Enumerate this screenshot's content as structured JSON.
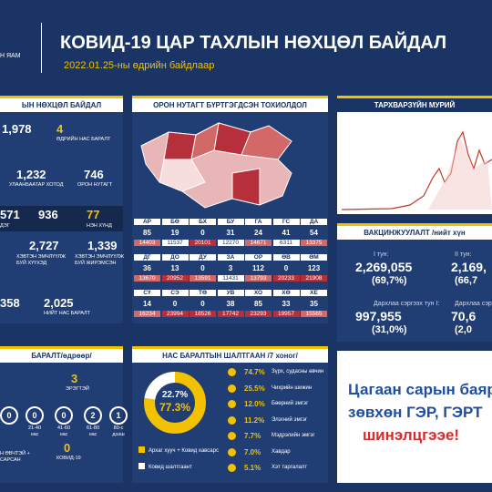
{
  "header": {
    "ministry": "Н ЯАМ",
    "title": "КОВИД-19 ЦАР ТАХЛЫН НӨХЦӨЛ БАЙДАЛ",
    "date": "2022.01.25-ны өдрийн байдлаар"
  },
  "situation": {
    "title": "ЫН НӨХЦӨЛ БАЙДАЛ",
    "total": "1,978",
    "daily_deaths": {
      "value": "4",
      "label": "ӨДРИЙН НАС БАРАЛТ"
    },
    "ulaanbaatar": {
      "value": "1,232",
      "label": "УЛААНБААТАР ХОТОД"
    },
    "local": {
      "value": "746",
      "label": "ОРОН НУТАГТ"
    },
    "severity": [
      {
        "value": "571",
        "label": "ДЭГ"
      },
      {
        "value": "936"
      },
      {
        "value": "77",
        "label": "НЭН ХҮНД"
      }
    ],
    "children": {
      "value": "2,727",
      "label": "ХЭВТЭН ЭМЧЛҮҮЛЖ БУЙ ХҮҮХЭД"
    },
    "pregnant": {
      "value": "1,339",
      "label": "ХЭВТЭН ЭМЧЛҮҮЛЖ БУЙ ЖИРЭМСЭН"
    },
    "recovered": "358",
    "total_deaths": {
      "value": "2,025",
      "label": "НИЙТ НАС БАРАЛТ"
    }
  },
  "provinces": {
    "title": "ОРОН НУТАГТ БҮРТГЭГДСЭН ТОХИОЛДОЛ",
    "rows": [
      {
        "codes": [
          "АР",
          "БӨ",
          "БХ",
          "БУ",
          "ГА",
          "ГС",
          "ДА"
        ],
        "daily": [
          85,
          19,
          0,
          31,
          24,
          41,
          54
        ],
        "totals": [
          14403,
          11537,
          20101,
          12270,
          14671,
          6311,
          13375
        ]
      },
      {
        "codes": [
          "ДГ",
          "ДО",
          "ДУ",
          "ЗА",
          "ОР",
          "ӨВ",
          "ӨМ"
        ],
        "daily": [
          36,
          13,
          0,
          3,
          112,
          0,
          123
        ],
        "totals": [
          13670,
          20952,
          13591,
          11431,
          13793,
          20233,
          21908
        ]
      },
      {
        "codes": [
          "СҮ",
          "СЭ",
          "ТӨ",
          "УВ",
          "ХО",
          "ХӨ",
          "ХЕ"
        ],
        "daily": [
          14,
          0,
          0,
          38,
          85,
          33,
          35
        ],
        "totals": [
          16234,
          23994,
          18526,
          17742,
          23293,
          19957,
          15565
        ]
      }
    ]
  },
  "epidemic_curve": {
    "title": "ТАРХВАРЗҮЙН МУРИЙ"
  },
  "vaccination": {
    "title": "ВАКЦИНЖУУЛАЛТ /нийт хүн",
    "doses": [
      {
        "label": "I тун:",
        "value": "2,269,055",
        "share": "(69,7%)"
      },
      {
        "label": "II тун:",
        "value": "2,169,",
        "share": "(66,7"
      },
      {
        "label": "Дархлаа сэргээх тун I:",
        "value": "997,955",
        "share": "(31,0%)"
      },
      {
        "label": "Дархлаа сэргээх",
        "value": "70,6",
        "share": "(2,0"
      }
    ]
  },
  "deaths": {
    "title": "БАРАЛТ/өдрөөр/",
    "male": {
      "value": "3",
      "label": "ЭРЭГТЭЙ"
    },
    "ages": [
      {
        "value": "0"
      },
      {
        "value": "0",
        "label": "21-40 нас"
      },
      {
        "value": "0",
        "label": "41-60 нас"
      },
      {
        "value": "2",
        "label": "61-80 нас"
      },
      {
        "value": "1",
        "label": "80-с дээш"
      }
    ],
    "chronic": "Н ӨВЧТЭЙ + САРСАН",
    "covid": {
      "value": "0",
      "label": "КОВИД-19"
    }
  },
  "chart_data": {
    "type": "pie",
    "title": "НАС БАРАЛТЫН ШАЛТГААН /7 хоног/",
    "categories": [
      "Архаг хууч + Ковид хавсарсан",
      "Ковид шалтгаант"
    ],
    "values": [
      77.3,
      22.7
    ],
    "value_labels": [
      "77.3%",
      "22.7%"
    ],
    "colors": [
      "#f2c200",
      "#ffffff"
    ]
  },
  "causes": [
    {
      "share": "74.7%",
      "label": "Зүрх, судасны өвчин"
    },
    {
      "share": "25.5%",
      "label": "Чихрийн шижин"
    },
    {
      "share": "12.0%",
      "label": "Бөөрний эмгэг"
    },
    {
      "share": "11.2%",
      "label": "Элэгний эмгэг"
    },
    {
      "share": "7.7%",
      "label": "Мэдрэлийн эмгэг"
    },
    {
      "share": "7.0%",
      "label": "Хавдар"
    },
    {
      "share": "5.1%",
      "label": "Хэт таргалалт"
    }
  ],
  "notice": {
    "lines": [
      "Цагаан сарын баяр",
      "зөвхөн ГЭР, ГЭРТ",
      "шинэлцгээе!"
    ]
  }
}
